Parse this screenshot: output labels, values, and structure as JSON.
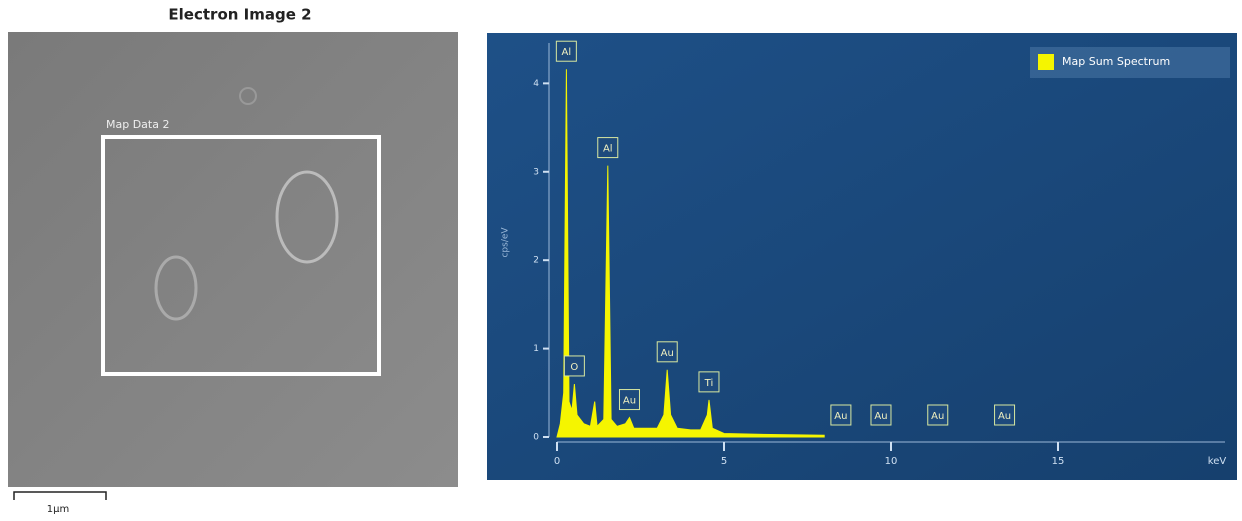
{
  "image": {
    "title": "Electron Image 2",
    "region_label": "Map Data 2",
    "scale_label": "1µm"
  },
  "chart_data": {
    "type": "area",
    "x": [
      0,
      0.1,
      0.2,
      0.28,
      0.36,
      0.45,
      0.52,
      0.6,
      0.8,
      1.0,
      1.13,
      1.2,
      1.4,
      1.52,
      1.62,
      1.8,
      2.05,
      2.17,
      2.3,
      2.6,
      3.0,
      3.2,
      3.3,
      3.4,
      3.6,
      4.0,
      4.3,
      4.5,
      4.55,
      4.65,
      5,
      6,
      8
    ],
    "series": [
      {
        "name": "Map Sum Spectrum",
        "color": "#f5f500",
        "values": [
          0,
          0.15,
          0.5,
          4.16,
          0.4,
          0.3,
          0.6,
          0.25,
          0.15,
          0.12,
          0.4,
          0.12,
          0.2,
          3.07,
          0.2,
          0.12,
          0.15,
          0.22,
          0.1,
          0.1,
          0.1,
          0.25,
          0.76,
          0.25,
          0.1,
          0.08,
          0.08,
          0.25,
          0.42,
          0.1,
          0.04,
          0.03,
          0.02
        ]
      }
    ],
    "peaks": [
      {
        "label": "Al",
        "x": 0.28
      },
      {
        "label": "O",
        "x": 0.52
      },
      {
        "label": "Al",
        "x": 1.52
      },
      {
        "label": "Au",
        "x": 2.17
      },
      {
        "label": "Au",
        "x": 3.3
      },
      {
        "label": "Ti",
        "x": 4.55
      },
      {
        "label": "Au",
        "x": 8.5
      },
      {
        "label": "Au",
        "x": 9.7
      },
      {
        "label": "Au",
        "x": 11.4
      },
      {
        "label": "Au",
        "x": 13.4
      }
    ],
    "xlim": [
      0,
      20
    ],
    "xticks": [
      0,
      5,
      10,
      15
    ],
    "x_label": "keV",
    "ylim": [
      0,
      4.4
    ],
    "yticks": [
      0,
      1,
      2,
      3,
      4
    ],
    "y_label": "cps/eV",
    "legend": "top-right"
  }
}
